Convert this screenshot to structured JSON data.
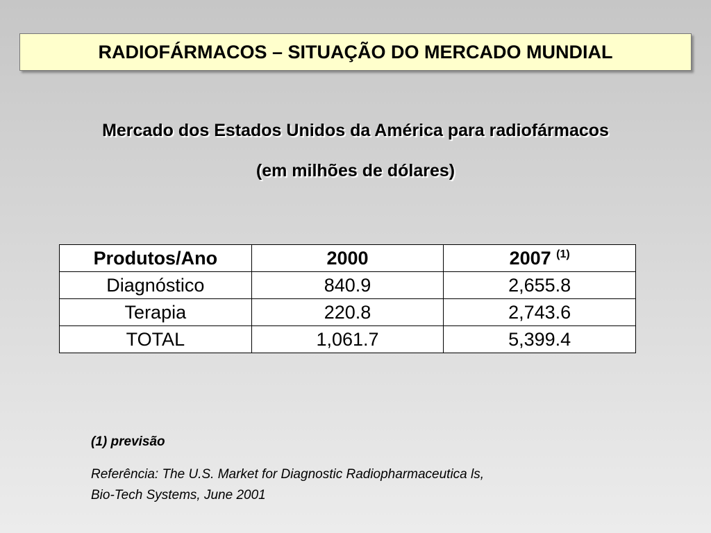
{
  "header": {
    "title": "RADIOFÁRMACOS – SITUAÇÃO DO MERCADO MUNDIAL"
  },
  "subtitle": {
    "lines": [
      "Mercado dos Estados Unidos da América para radiofármacos",
      "(em milhões de dólares)"
    ]
  },
  "table": {
    "header": [
      "Produtos/Ano",
      "2000",
      "2007"
    ],
    "header_note": "(1)",
    "rows": [
      [
        "Diagnóstico",
        "840.9",
        "2,655.8"
      ],
      [
        "Terapia",
        "220.8",
        "2,743.6"
      ],
      [
        "TOTAL",
        "1,061.7",
        "5,399.4"
      ]
    ]
  },
  "footnote": {
    "note": "(1) previsão",
    "reference": [
      "Referência: The U.S. Market for Diagnostic Radiopharmaceutica ls,",
      "Bio-Tech Systems, June 2001"
    ]
  }
}
